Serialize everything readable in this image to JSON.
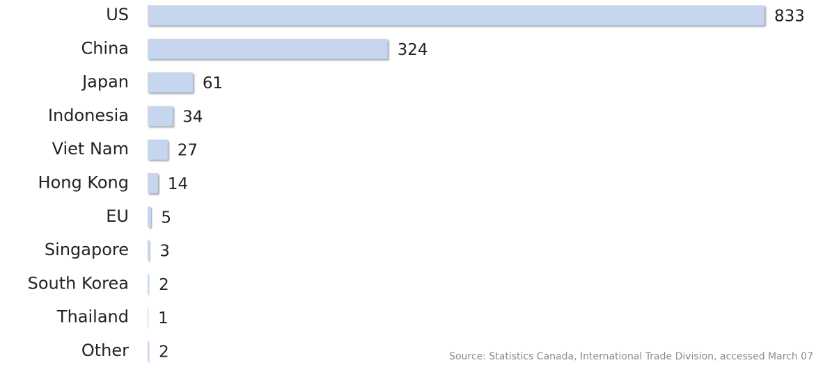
{
  "chart_data": {
    "type": "bar",
    "orientation": "horizontal",
    "categories": [
      "US",
      "China",
      "Japan",
      "Indonesia",
      "Viet Nam",
      "Hong Kong",
      "EU",
      "Singapore",
      "South Korea",
      "Thailand",
      "Other"
    ],
    "values": [
      833,
      324,
      61,
      34,
      27,
      14,
      5,
      3,
      2,
      1,
      2
    ],
    "color": "#c6d6ef",
    "source": "Source: Statistics Canada, International Trade Division, accessed March 07"
  }
}
